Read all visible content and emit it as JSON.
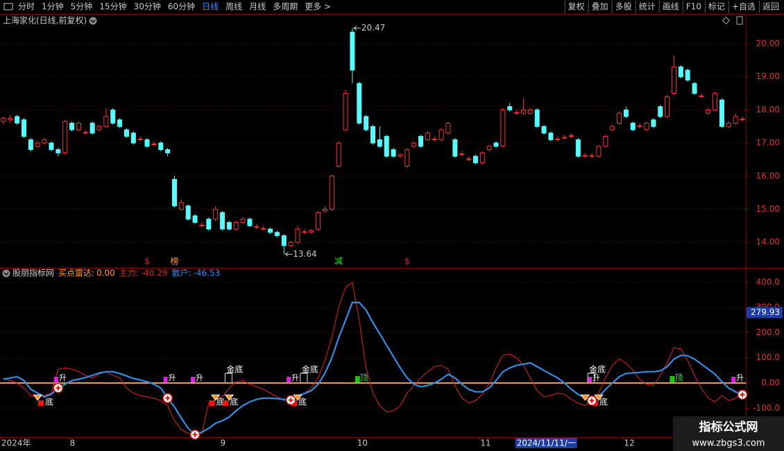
{
  "toolbar": {
    "left": [
      "分时",
      "1分钟",
      "5分钟",
      "15分钟",
      "30分钟",
      "60分钟",
      "日线",
      "周线",
      "月线",
      "多周期",
      "更多 >"
    ],
    "active_index": 6,
    "right": [
      "复权",
      "叠加",
      "多股",
      "统计",
      "画线",
      "F10",
      "标记",
      "+自选",
      "返回"
    ]
  },
  "chart_data": [
    {
      "type": "candlestick",
      "title": "上海家化(日线,前复权)",
      "categories": [
        "2024年",
        null,
        null,
        null,
        null,
        null,
        null,
        null,
        null,
        null,
        "8",
        null,
        null,
        null,
        null,
        null,
        null,
        null,
        null,
        null,
        null,
        null,
        null,
        null,
        null,
        null,
        null,
        null,
        null,
        null,
        null,
        null,
        "9",
        null,
        null,
        null,
        null,
        null,
        null,
        null,
        null,
        null,
        null,
        null,
        null,
        null,
        null,
        null,
        null,
        null,
        null,
        null,
        "10",
        null,
        null,
        null,
        null,
        null,
        null,
        null,
        null,
        null,
        null,
        null,
        null,
        null,
        null,
        null,
        null,
        null,
        "11",
        null,
        null,
        null,
        null,
        "2024/11/11/一",
        null,
        null,
        null,
        null,
        null,
        null,
        null,
        null,
        null,
        null,
        null,
        null,
        null,
        null,
        null,
        "12",
        null,
        null,
        null,
        null,
        null,
        null,
        null,
        null,
        null,
        null,
        null,
        null,
        null,
        null,
        null,
        null,
        null
      ],
      "open": [
        17.65,
        17.7,
        17.8,
        17.7,
        17.1,
        16.9,
        17.0,
        17.0,
        16.8,
        16.7,
        17.6,
        17.4,
        17.3,
        17.6,
        17.4,
        17.5,
        18.0,
        17.7,
        17.4,
        17.3,
        17.1,
        17.1,
        16.95,
        17.0,
        16.8,
        15.9,
        15.0,
        15.1,
        14.8,
        14.5,
        14.7,
        14.7,
        14.9,
        14.6,
        14.4,
        14.6,
        14.7,
        14.45,
        14.4,
        14.4,
        14.3,
        14.2,
        13.9,
        14.0,
        14.3,
        14.3,
        14.4,
        14.95,
        15.0,
        16.3,
        17.4,
        20.35,
        18.8,
        17.8,
        17.5,
        17.1,
        17.2,
        16.8,
        16.6,
        16.3,
        16.9,
        17.2,
        17.1,
        17.1,
        17.1,
        17.3,
        17.1,
        16.65,
        16.5,
        16.6,
        16.4,
        16.8,
        17.0,
        16.9,
        18.1,
        17.9,
        17.9,
        17.9,
        18.0,
        17.5,
        17.3,
        17.1,
        17.15,
        17.2,
        17.1,
        16.6,
        16.6,
        16.6,
        16.9,
        17.4,
        17.6,
        18.0,
        17.6,
        17.5,
        17.4,
        17.7,
        18.1,
        17.8,
        18.5,
        19.3,
        19.2,
        18.8,
        18.4,
        17.9,
        18.0,
        18.3,
        17.5,
        17.6,
        17.7
      ],
      "high": [
        17.8,
        17.85,
        17.85,
        17.75,
        17.15,
        17.05,
        17.15,
        17.05,
        16.85,
        17.7,
        17.65,
        17.65,
        17.4,
        17.65,
        17.55,
        18.05,
        18.05,
        17.75,
        17.45,
        17.35,
        17.2,
        17.15,
        17.05,
        17.05,
        16.85,
        16.0,
        15.3,
        15.15,
        14.85,
        14.6,
        14.75,
        15.1,
        14.95,
        14.65,
        14.65,
        14.75,
        14.75,
        14.55,
        14.5,
        14.45,
        14.35,
        14.25,
        14.05,
        14.5,
        14.4,
        14.4,
        14.95,
        15.1,
        16.05,
        17.05,
        18.6,
        20.47,
        18.85,
        17.85,
        17.55,
        17.5,
        17.25,
        16.85,
        16.7,
        16.85,
        17.05,
        17.25,
        17.35,
        17.2,
        17.45,
        17.65,
        17.15,
        16.75,
        16.6,
        16.65,
        16.75,
        16.95,
        17.05,
        18.05,
        18.2,
        18.0,
        18.35,
        18.05,
        18.05,
        17.55,
        17.35,
        17.2,
        17.25,
        17.3,
        17.15,
        16.7,
        16.7,
        16.95,
        17.25,
        17.55,
        17.95,
        18.1,
        17.65,
        17.6,
        17.65,
        17.75,
        18.15,
        18.45,
        19.65,
        19.35,
        19.25,
        18.85,
        18.5,
        18.05,
        18.55,
        18.35,
        17.65,
        17.9,
        17.8
      ],
      "low": [
        17.55,
        17.6,
        17.55,
        17.15,
        16.75,
        16.85,
        16.95,
        16.75,
        16.6,
        16.65,
        17.35,
        17.35,
        17.25,
        17.25,
        17.35,
        17.45,
        17.55,
        17.45,
        17.15,
        16.95,
        17.05,
        16.85,
        16.9,
        16.75,
        16.6,
        15.05,
        14.95,
        14.65,
        14.55,
        14.45,
        14.35,
        14.65,
        14.35,
        14.35,
        14.35,
        14.55,
        14.45,
        14.4,
        14.35,
        14.25,
        14.15,
        13.64,
        13.85,
        13.95,
        14.25,
        14.25,
        14.35,
        14.9,
        14.95,
        16.25,
        17.35,
        18.8,
        17.55,
        17.35,
        16.95,
        16.85,
        16.55,
        16.55,
        16.55,
        16.25,
        16.85,
        16.85,
        17.05,
        17.05,
        17.05,
        17.25,
        16.55,
        16.6,
        16.45,
        16.35,
        16.35,
        16.75,
        16.85,
        16.85,
        17.95,
        17.85,
        17.85,
        17.85,
        17.45,
        17.25,
        17.05,
        17.05,
        17.1,
        17.15,
        16.55,
        16.55,
        16.55,
        16.55,
        16.85,
        17.35,
        17.55,
        17.75,
        17.35,
        17.45,
        17.35,
        17.45,
        17.75,
        17.75,
        18.45,
        18.95,
        18.85,
        18.45,
        18.35,
        17.85,
        17.95,
        17.45,
        17.45,
        17.55,
        17.65
      ],
      "close": [
        17.75,
        17.75,
        17.6,
        17.2,
        16.8,
        17.0,
        17.1,
        16.8,
        16.7,
        17.65,
        17.4,
        17.6,
        17.32,
        17.3,
        17.5,
        17.8,
        17.6,
        17.5,
        17.2,
        17.0,
        17.12,
        16.9,
        16.97,
        16.8,
        16.7,
        15.1,
        15.2,
        14.7,
        14.6,
        14.52,
        14.4,
        15.0,
        14.4,
        14.4,
        14.6,
        14.7,
        14.5,
        14.47,
        14.42,
        14.3,
        14.2,
        13.9,
        14.0,
        14.4,
        14.32,
        14.35,
        14.9,
        15.0,
        16.0,
        17.0,
        18.5,
        19.2,
        17.6,
        17.4,
        17.0,
        16.9,
        16.6,
        16.6,
        16.65,
        16.8,
        17.0,
        16.9,
        17.3,
        17.12,
        17.4,
        17.6,
        16.6,
        16.67,
        16.52,
        16.4,
        16.7,
        16.9,
        16.9,
        18.0,
        18.0,
        17.92,
        18.0,
        18.0,
        17.5,
        17.3,
        17.1,
        17.12,
        17.17,
        17.22,
        16.6,
        16.62,
        16.62,
        16.9,
        17.2,
        17.5,
        17.9,
        17.8,
        17.4,
        17.52,
        17.6,
        17.5,
        17.8,
        18.4,
        19.3,
        19.0,
        18.9,
        18.5,
        18.42,
        18.0,
        18.5,
        17.5,
        17.6,
        17.8,
        17.72
      ],
      "up_color": "#ff3232",
      "down_color": "#54fcfc",
      "ylim": [
        13.25,
        20.88
      ],
      "yticks": [
        {
          "value": 14,
          "label": "14.00"
        },
        {
          "value": 15,
          "label": "15.00"
        },
        {
          "value": 16,
          "label": "16.00"
        },
        {
          "value": 17,
          "label": "17.00"
        },
        {
          "value": 18,
          "label": "18.00"
        },
        {
          "value": 19,
          "label": "19.00"
        },
        {
          "value": 20,
          "label": "20.00"
        }
      ],
      "grid": true,
      "annotations": [
        {
          "index": 51,
          "value": 20.47
        },
        {
          "index": 41,
          "value": 13.64
        }
      ],
      "signals": [
        {
          "index": 21,
          "text": "$",
          "color": "#e02020"
        },
        {
          "index": 25,
          "text": "榜",
          "color": "#ff9a40"
        },
        {
          "index": 49,
          "text": "减",
          "color": "#30d030"
        },
        {
          "index": 59,
          "text": "$",
          "color": "#e02020"
        }
      ]
    },
    {
      "type": "line",
      "title": "股朋指标网",
      "reference": {
        "name": "买点雷达:",
        "readout": "0.00",
        "color": "#ff9a1f",
        "value": 0
      },
      "series": [
        {
          "name": "主力:",
          "readout": "-40.29",
          "color": "#e82020",
          "values": [
            20,
            10,
            0,
            -20,
            -50,
            -55,
            -50,
            -40,
            55,
            60,
            55,
            45,
            30,
            20,
            35,
            45,
            30,
            20,
            -20,
            -40,
            -50,
            -55,
            -60,
            -70,
            -90,
            -150,
            -185,
            -200,
            -205,
            -200,
            -80,
            -65,
            -55,
            -20,
            5,
            10,
            -5,
            -15,
            -25,
            -40,
            -55,
            -70,
            -60,
            -55,
            -40,
            -20,
            20,
            90,
            180,
            300,
            380,
            400,
            250,
            60,
            -40,
            -90,
            -115,
            -110,
            -90,
            -40,
            -10,
            20,
            45,
            65,
            70,
            55,
            -10,
            -60,
            -80,
            -70,
            -45,
            -5,
            60,
            110,
            115,
            100,
            70,
            20,
            -30,
            -55,
            -50,
            -40,
            -45,
            -65,
            -80,
            -90,
            -70,
            -40,
            20,
            70,
            95,
            80,
            50,
            15,
            -5,
            -10,
            30,
            80,
            140,
            135,
            90,
            30,
            -20,
            -60,
            -75,
            -50,
            -70,
            -60,
            -40.29
          ]
        },
        {
          "name": "散户:",
          "readout": "-46.53",
          "color": "#2f8fe8",
          "values": [
            15,
            20,
            25,
            10,
            -25,
            -40,
            -55,
            -45,
            -20,
            -5,
            10,
            15,
            22,
            30,
            40,
            45,
            45,
            38,
            28,
            18,
            12,
            5,
            -5,
            -20,
            -60,
            -95,
            -140,
            -180,
            -205,
            -195,
            -180,
            -160,
            -150,
            -135,
            -110,
            -90,
            -75,
            -65,
            -60,
            -60,
            -62,
            -65,
            -68,
            -50,
            -42,
            -30,
            -5,
            40,
            100,
            180,
            250,
            320,
            320,
            290,
            240,
            195,
            150,
            105,
            60,
            20,
            -5,
            -15,
            -10,
            0,
            15,
            35,
            20,
            -5,
            -25,
            -35,
            -35,
            -20,
            10,
            45,
            60,
            70,
            75,
            80,
            65,
            50,
            35,
            20,
            0,
            -25,
            -45,
            -60,
            -70,
            -55,
            -25,
            0,
            25,
            38,
            40,
            42,
            45,
            45,
            48,
            65,
            95,
            110,
            108,
            95,
            75,
            55,
            35,
            5,
            -20,
            -35,
            -46.53
          ]
        }
      ],
      "ylim": [
        -215,
        452
      ],
      "yticks": [
        {
          "value": -100,
          "label": "-100.0"
        },
        {
          "value": 0,
          "label": "0.00"
        },
        {
          "value": 100,
          "label": "100.0"
        },
        {
          "value": 200,
          "label": "200.0"
        },
        {
          "value": 300,
          "label": "300.0"
        },
        {
          "value": 400,
          "label": "400.0"
        }
      ],
      "grid": true,
      "cursor_value": 279.93,
      "buy_points": [
        8,
        24,
        28,
        42,
        86,
        108
      ],
      "diamonds": [
        5,
        31,
        33,
        43,
        85,
        87
      ],
      "signals": [
        {
          "index": 8,
          "text": "升",
          "style": "up"
        },
        {
          "index": 24,
          "text": "升",
          "style": "up"
        },
        {
          "index": 28,
          "text": "升",
          "style": "up"
        },
        {
          "index": 42,
          "text": "升",
          "style": "up"
        },
        {
          "index": 86,
          "text": "升",
          "style": "up"
        },
        {
          "index": 107,
          "text": "升",
          "style": "up"
        },
        {
          "index": 33,
          "text": "金底",
          "style": "gold"
        },
        {
          "index": 44,
          "text": "金底",
          "style": "gold"
        },
        {
          "index": 86,
          "text": "金底",
          "style": "gold"
        },
        {
          "index": 6,
          "text": "底",
          "style": "bottom"
        },
        {
          "index": 31,
          "text": "底",
          "style": "bottom"
        },
        {
          "index": 33,
          "text": "底",
          "style": "bottom"
        },
        {
          "index": 43,
          "text": "底",
          "style": "bottom"
        },
        {
          "index": 87,
          "text": "底",
          "style": "bottom"
        },
        {
          "index": 52,
          "text": "顶",
          "style": "top"
        },
        {
          "index": 98,
          "text": "顶",
          "style": "top"
        }
      ]
    }
  ],
  "watermark": {
    "title": "指标公式网",
    "url": "www.zbgs3.com"
  }
}
